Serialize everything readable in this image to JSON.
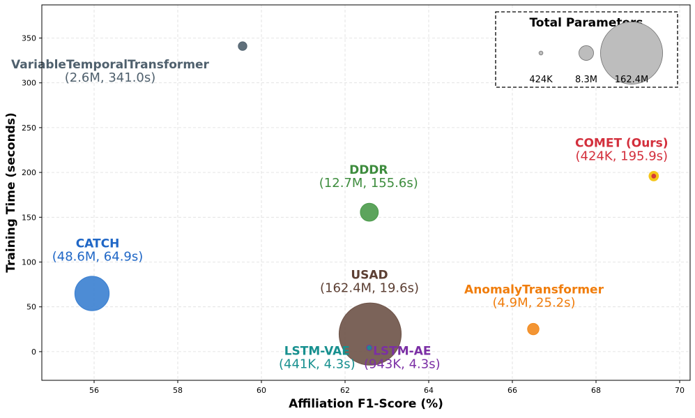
{
  "chart_data": {
    "type": "scatter",
    "subtype": "bubble",
    "xlabel": "Affiliation F1-Score (%)",
    "ylabel": "Training Time (seconds)",
    "xlim": [
      54.75,
      70.25
    ],
    "ylim": [
      -32,
      387
    ],
    "xticks": [
      56,
      58,
      60,
      62,
      64,
      66,
      68,
      70
    ],
    "yticks": [
      0,
      50,
      100,
      150,
      200,
      250,
      300,
      350
    ],
    "grid": true,
    "points": [
      {
        "name": "VariableTemporalTransformer",
        "detail": "(2.6M, 341.0s)",
        "x": 59.55,
        "y": 341.0,
        "params_m": 2.6,
        "color": "#4f606d",
        "label_color": "#4f606d"
      },
      {
        "name": "COMET (Ours)",
        "detail": "(424K, 195.9s)",
        "x": 69.38,
        "y": 195.9,
        "params_m": 0.424,
        "color": "#d32f3c",
        "label_color": "#d32f3c",
        "highlight_ring": "#f5c518"
      },
      {
        "name": "DDDR",
        "detail": "(12.7M, 155.6s)",
        "x": 62.58,
        "y": 155.6,
        "params_m": 12.7,
        "color": "#4a9a4a",
        "label_color": "#3d8c3d"
      },
      {
        "name": "CATCH",
        "detail": "(48.6M, 64.9s)",
        "x": 55.95,
        "y": 64.9,
        "params_m": 48.6,
        "color": "#3a7fd0",
        "label_color": "#2067c6"
      },
      {
        "name": "USAD",
        "detail": "(162.4M, 19.6s)",
        "x": 62.6,
        "y": 19.6,
        "params_m": 162.4,
        "color": "#6d5247",
        "label_color": "#5c3f33"
      },
      {
        "name": "AnomalyTransformer",
        "detail": "(4.9M, 25.2s)",
        "x": 66.5,
        "y": 25.2,
        "params_m": 4.9,
        "color": "#f28a1e",
        "label_color": "#f07d0c"
      },
      {
        "name": "LSTM-VAE",
        "detail": "(441K, 4.3s)",
        "x": 62.58,
        "y": 4.3,
        "params_m": 0.441,
        "color": "#17908f",
        "label_color": "#17908f"
      },
      {
        "name": "LSTM-AE",
        "detail": "(943K, 4.3s)",
        "x": 62.58,
        "y": 4.3,
        "params_m": 0.943,
        "color": "#7b2fa5",
        "label_color": "#7b2fa5"
      }
    ],
    "legend": {
      "title": "Total Parameters",
      "position": "top-right",
      "entries": [
        {
          "label": "424K",
          "params_m": 0.424
        },
        {
          "label": "8.3M",
          "params_m": 8.3
        },
        {
          "label": "162.4M",
          "params_m": 162.4
        }
      ]
    }
  }
}
